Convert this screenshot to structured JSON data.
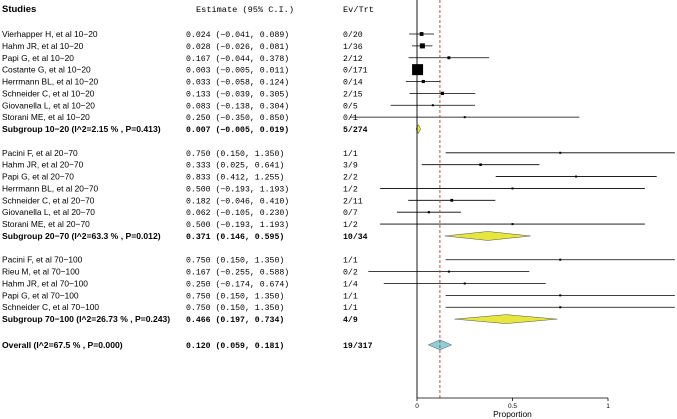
{
  "header": {
    "studies": "Studies",
    "estimate": "Estimate (95% C.I.)",
    "evtrt": "Ev/Trt"
  },
  "chart_data": {
    "type": "forest",
    "xlabel": "Proportion",
    "xlim": [
      0,
      1
    ],
    "xticks": [
      {
        "value": 0,
        "label": "0"
      },
      {
        "value": 0.5,
        "label": "0.5"
      },
      {
        "value": 1,
        "label": "1"
      }
    ],
    "overall_reference_line": 0.12,
    "colors": {
      "subgroup_diamond": "#e6e63c",
      "overall_diamond": "#8ccfd8",
      "reference_line": "#c0392b",
      "box": "#000000"
    },
    "groups": [
      {
        "studies": [
          {
            "name": "Vierhapper H, et al 10−20",
            "est": 0.024,
            "lo": -0.041,
            "hi": 0.089,
            "ci_text": "0.024 (−0.041, 0.089)",
            "evtrt": "0/20",
            "weight": 20
          },
          {
            "name": "Hahm JR, et al 10−20",
            "est": 0.028,
            "lo": -0.026,
            "hi": 0.081,
            "ci_text": "0.028 (−0.026, 0.081)",
            "evtrt": "1/36",
            "weight": 36
          },
          {
            "name": "Papi G, et al 10−20",
            "est": 0.167,
            "lo": -0.044,
            "hi": 0.378,
            "ci_text": "0.167 (−0.044, 0.378)",
            "evtrt": "2/12",
            "weight": 12
          },
          {
            "name": "Costante G, et al 10−20",
            "est": 0.003,
            "lo": -0.005,
            "hi": 0.011,
            "ci_text": "0.003 (−0.005, 0.011)",
            "evtrt": "0/171",
            "weight": 171
          },
          {
            "name": "Herrmann BL, et al 10−20",
            "est": 0.033,
            "lo": -0.058,
            "hi": 0.124,
            "ci_text": "0.033 (−0.058, 0.124)",
            "evtrt": "0/14",
            "weight": 14
          },
          {
            "name": "Schneider C, et al 10−20",
            "est": 0.133,
            "lo": -0.039,
            "hi": 0.305,
            "ci_text": "0.133 (−0.039, 0.305)",
            "evtrt": "2/15",
            "weight": 15
          },
          {
            "name": "Giovanella L, et al 10−20",
            "est": 0.083,
            "lo": -0.138,
            "hi": 0.304,
            "ci_text": "0.083 (−0.138, 0.304)",
            "evtrt": "0/5",
            "weight": 5
          },
          {
            "name": "Storani ME, et al 10−20",
            "est": 0.25,
            "lo": -0.35,
            "hi": 0.85,
            "ci_text": "0.250 (−0.350, 0.850)",
            "evtrt": "0/1",
            "weight": 1
          }
        ],
        "subgroup": {
          "label": "Subgroup 10−20 (I^2=2.15 % , P=0.413)",
          "est": 0.007,
          "lo": -0.005,
          "hi": 0.019,
          "ci_text": "0.007 (−0.005, 0.019)",
          "evtrt": "5/274"
        }
      },
      {
        "studies": [
          {
            "name": "Pacini F, et al 20−70",
            "est": 0.75,
            "lo": 0.15,
            "hi": 1.35,
            "ci_text": "0.750 (0.150, 1.350)",
            "evtrt": "1/1",
            "weight": 1
          },
          {
            "name": "Hahm JR, et al 20−70",
            "est": 0.333,
            "lo": 0.025,
            "hi": 0.641,
            "ci_text": "0.333 (0.025, 0.641)",
            "evtrt": "3/9",
            "weight": 9
          },
          {
            "name": "Papi G, et al 20−70",
            "est": 0.833,
            "lo": 0.412,
            "hi": 1.255,
            "ci_text": "0.833 (0.412, 1.255)",
            "evtrt": "2/2",
            "weight": 2
          },
          {
            "name": "Herrmann BL, et al 20−70",
            "est": 0.5,
            "lo": -0.193,
            "hi": 1.193,
            "ci_text": "0.500 (−0.193, 1.193)",
            "evtrt": "1/2",
            "weight": 2
          },
          {
            "name": "Schneider C, et al 20−70",
            "est": 0.182,
            "lo": -0.046,
            "hi": 0.41,
            "ci_text": "0.182 (−0.046, 0.410)",
            "evtrt": "2/11",
            "weight": 11
          },
          {
            "name": "Giovanella L, et al 20−70",
            "est": 0.062,
            "lo": -0.105,
            "hi": 0.23,
            "ci_text": "0.062 (−0.105, 0.230)",
            "evtrt": "0/7",
            "weight": 7
          },
          {
            "name": "Storani ME, et al 20−70",
            "est": 0.5,
            "lo": -0.193,
            "hi": 1.193,
            "ci_text": "0.500 (−0.193, 1.193)",
            "evtrt": "1/2",
            "weight": 2
          }
        ],
        "subgroup": {
          "label": "Subgroup 20−70 (I^2=63.3 % , P=0.012)",
          "est": 0.371,
          "lo": 0.146,
          "hi": 0.595,
          "ci_text": "0.371 (0.146, 0.595)",
          "evtrt": "10/34"
        }
      },
      {
        "studies": [
          {
            "name": "Pacini F, et al 70−100",
            "est": 0.75,
            "lo": 0.15,
            "hi": 1.35,
            "ci_text": "0.750 (0.150, 1.350)",
            "evtrt": "1/1",
            "weight": 1
          },
          {
            "name": "Rieu M, et al 70−100",
            "est": 0.167,
            "lo": -0.255,
            "hi": 0.588,
            "ci_text": "0.167 (−0.255, 0.588)",
            "evtrt": "0/2",
            "weight": 2
          },
          {
            "name": "Hahm JR, et al 70−100",
            "est": 0.25,
            "lo": -0.174,
            "hi": 0.674,
            "ci_text": "0.250 (−0.174, 0.674)",
            "evtrt": "1/4",
            "weight": 4
          },
          {
            "name": "Papi G, et al 70−100",
            "est": 0.75,
            "lo": 0.15,
            "hi": 1.35,
            "ci_text": "0.750 (0.150, 1.350)",
            "evtrt": "1/1",
            "weight": 1
          },
          {
            "name": "Schneider C, et al 70−100",
            "est": 0.75,
            "lo": 0.15,
            "hi": 1.35,
            "ci_text": "0.750 (0.150, 1.350)",
            "evtrt": "1/1",
            "weight": 1
          }
        ],
        "subgroup": {
          "label": "Subgroup 70−100 (I^2=26.73 % , P=0.243)",
          "est": 0.466,
          "lo": 0.197,
          "hi": 0.734,
          "ci_text": "0.466 (0.197, 0.734)",
          "evtrt": "4/9"
        }
      }
    ],
    "overall": {
      "label": "Overall (I^2=67.5 % , P=0.000)",
      "est": 0.12,
      "lo": 0.059,
      "hi": 0.181,
      "ci_text": "0.120 (0.059, 0.181)",
      "evtrt": "19/317"
    }
  }
}
